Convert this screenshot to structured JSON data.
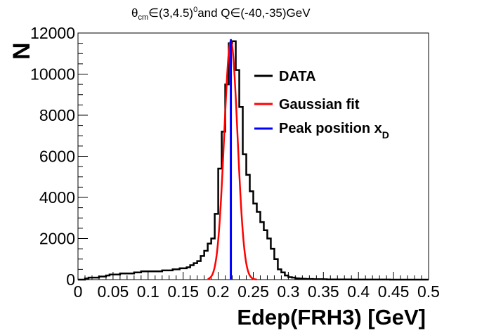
{
  "chart_data": {
    "type": "line",
    "title": {
      "prefix": "θ",
      "prefix_sub": "cm",
      "mid": "∈(3,4.5)",
      "mid_sup": "0",
      "suffix": "and Q∈(-40,-35)GeV"
    },
    "xlabel": "Edep(FRH3) [GeV]",
    "ylabel": "N",
    "xlim": [
      0,
      0.5
    ],
    "ylim": [
      0,
      12000
    ],
    "x_ticks": [
      "0",
      "0.05",
      "0.1",
      "0.15",
      "0.2",
      "0.25",
      "0.3",
      "0.35",
      "0.4",
      "0.45",
      "0.5"
    ],
    "y_ticks": [
      "0",
      "2000",
      "4000",
      "6000",
      "8000",
      "10000",
      "12000"
    ],
    "legend_position": "top-right",
    "series": [
      {
        "name": "DATA",
        "kind": "histogram",
        "color": "#000000",
        "bin_width": 0.005,
        "bin_edges_start": 0.0,
        "values": [
          0,
          0,
          50,
          100,
          100,
          100,
          150,
          150,
          200,
          250,
          250,
          250,
          300,
          300,
          300,
          300,
          350,
          350,
          400,
          400,
          400,
          400,
          400,
          400,
          450,
          450,
          450,
          500,
          500,
          550,
          550,
          600,
          700,
          800,
          900,
          1150,
          1400,
          1750,
          2000,
          3200,
          5400,
          7200,
          9500,
          11500,
          11600,
          10200,
          8400,
          6100,
          5100,
          4300,
          3700,
          3300,
          2800,
          2400,
          2000,
          1500,
          1000,
          500,
          350,
          200,
          120,
          100,
          60,
          50,
          40,
          30,
          30,
          20,
          20,
          20,
          15,
          10,
          10,
          10,
          10,
          10,
          10,
          10,
          5,
          5,
          5,
          5,
          5,
          5,
          5,
          5,
          5,
          5,
          5,
          0,
          0,
          0,
          0,
          0,
          0,
          0,
          0,
          0,
          0,
          0
        ]
      },
      {
        "name": "Gaussian fit",
        "kind": "gaussian",
        "color": "#ff0000",
        "amplitude": 11600,
        "mean": 0.218,
        "sigma": 0.0095,
        "range": [
          0.185,
          0.255
        ]
      },
      {
        "name": "Peak position x",
        "name_sub": "D",
        "kind": "vertical_line",
        "color": "#0000ff",
        "x": 0.218,
        "y_top": 11700
      }
    ]
  }
}
